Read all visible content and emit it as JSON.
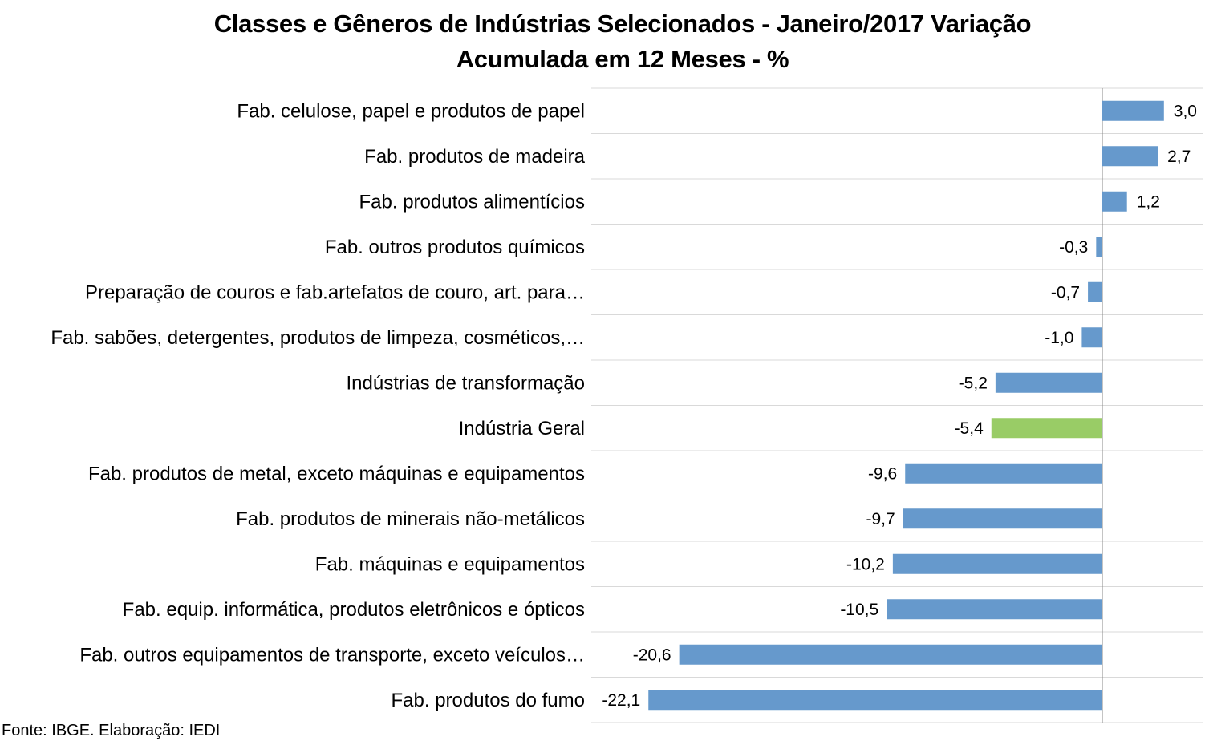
{
  "chart_data": {
    "type": "bar",
    "orientation": "horizontal",
    "title_lines": [
      "Classes e Gêneros de Indústrias Selecionados - Janeiro/2017 Variação",
      "Acumulada em 12 Meses - %"
    ],
    "categories": [
      "Fab. celulose, papel e produtos de papel",
      "Fab. produtos de madeira",
      "Fab. produtos alimentícios",
      "Fab. outros produtos químicos",
      "Preparação de couros e fab.artefatos de couro, art. para…",
      "Fab. sabões, detergentes, produtos de limpeza, cosméticos,…",
      "Indústrias de transformação",
      "Indústria Geral",
      "Fab. produtos de metal, exceto máquinas e equipamentos",
      "Fab. produtos de minerais não-metálicos",
      "Fab. máquinas e equipamentos",
      "Fab. equip. informática, produtos eletrônicos e ópticos",
      "Fab. outros equipamentos de transporte, exceto veículos…",
      "Fab. produtos do fumo"
    ],
    "values": [
      3.0,
      2.7,
      1.2,
      -0.3,
      -0.7,
      -1.0,
      -5.2,
      -5.4,
      -9.6,
      -9.7,
      -10.2,
      -10.5,
      -20.6,
      -22.1
    ],
    "data_labels": [
      "3,0",
      "2,7",
      "1,2",
      "-0,3",
      "-0,7",
      "-1,0",
      "-5,2",
      "-5,4",
      "-9,6",
      "-9,7",
      "-10,2",
      "-10,5",
      "-20,6",
      "-22,1"
    ],
    "highlight_category": "Indústria Geral",
    "xlim": [
      -25,
      5
    ],
    "grid": true,
    "legend": "none",
    "colors": {
      "bar": "#6699cc",
      "highlight": "#99cc66",
      "grid": "#d9d9d9",
      "axis": "#888888"
    }
  },
  "source_note": "Fonte: IBGE. Elaboração: IEDI"
}
